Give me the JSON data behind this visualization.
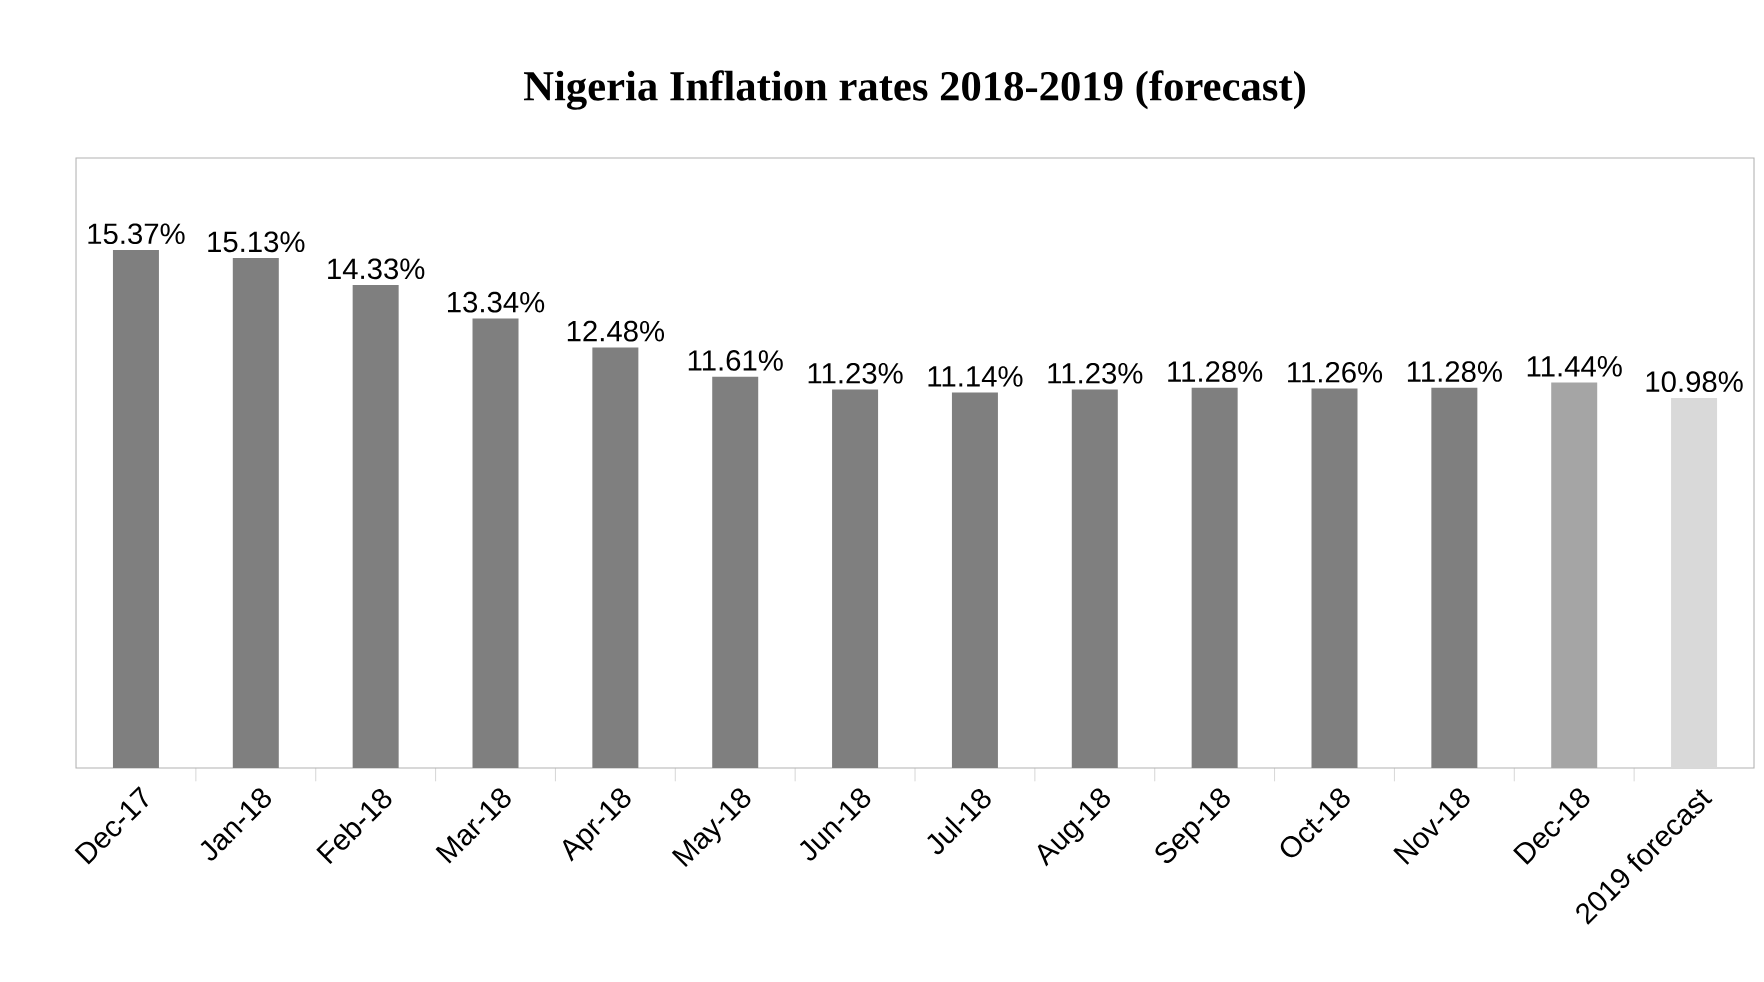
{
  "chart_data": {
    "type": "bar",
    "title": "Nigeria Inflation rates 2018-2019 (forecast)",
    "categories": [
      "Dec-17",
      "Jan-18",
      "Feb-18",
      "Mar-18",
      "Apr-18",
      "May-18",
      "Jun-18",
      "Jul-18",
      "Aug-18",
      "Sep-18",
      "Oct-18",
      "Nov-18",
      "Dec-18",
      "2019 forecast"
    ],
    "values": [
      15.37,
      15.13,
      14.33,
      13.34,
      12.48,
      11.61,
      11.23,
      11.14,
      11.23,
      11.28,
      11.26,
      11.28,
      11.44,
      10.98
    ],
    "value_labels": [
      "15.37%",
      "15.13%",
      "14.33%",
      "13.34%",
      "12.48%",
      "11.61%",
      "11.23%",
      "11.14%",
      "11.23%",
      "11.28%",
      "11.26%",
      "11.28%",
      "11.44%",
      "10.98%"
    ],
    "colors": [
      "#7f7f7f",
      "#7f7f7f",
      "#7f7f7f",
      "#7f7f7f",
      "#7f7f7f",
      "#7f7f7f",
      "#7f7f7f",
      "#7f7f7f",
      "#7f7f7f",
      "#7f7f7f",
      "#7f7f7f",
      "#7f7f7f",
      "#a5a5a5",
      "#d9d9d9"
    ],
    "ylim": [
      0,
      18.1
    ],
    "grid": false
  }
}
